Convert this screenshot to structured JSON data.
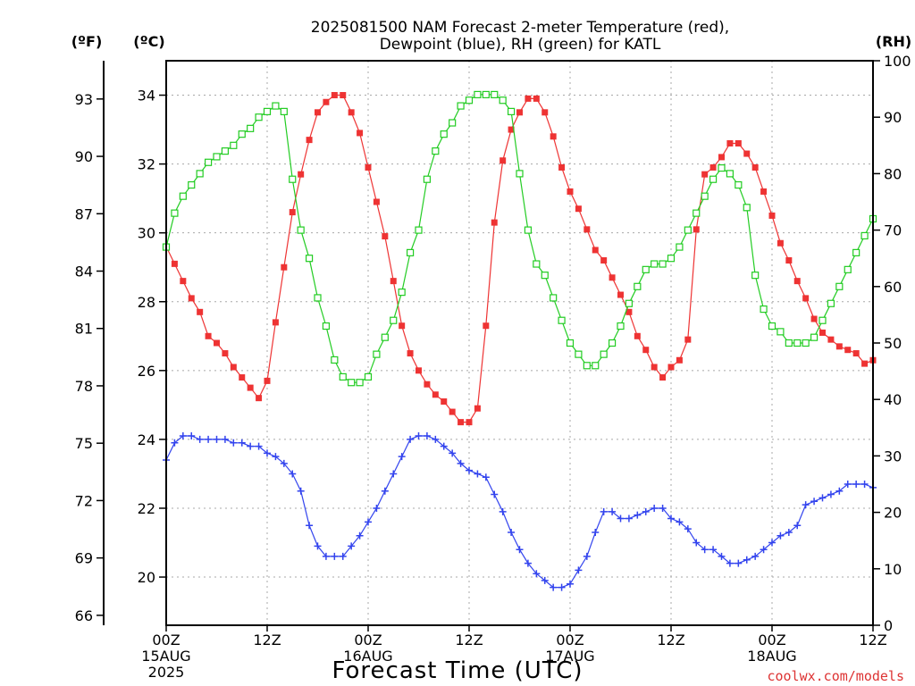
{
  "chart_data": {
    "type": "line",
    "title_line1": "2025081500 NAM Forecast 2-meter Temperature (red),",
    "title_line2": "Dewpoint (blue), RH (green) for KATL",
    "xlabel": "Forecast Time (UTC)",
    "credit": "coolwx.com/models",
    "units": {
      "fahrenheit": "(ºF)",
      "celsius": "(ºC)",
      "rh": "(RH)"
    },
    "x_range_hours": [
      0,
      84
    ],
    "x_ticks": [
      {
        "hour": 0,
        "lines": [
          "00Z",
          "15AUG",
          "2025"
        ]
      },
      {
        "hour": 12,
        "lines": [
          "12Z"
        ]
      },
      {
        "hour": 24,
        "lines": [
          "00Z",
          "16AUG"
        ]
      },
      {
        "hour": 36,
        "lines": [
          "12Z"
        ]
      },
      {
        "hour": 48,
        "lines": [
          "00Z",
          "17AUG"
        ]
      },
      {
        "hour": 60,
        "lines": [
          "12Z"
        ]
      },
      {
        "hour": 72,
        "lines": [
          "00Z",
          "18AUG"
        ]
      },
      {
        "hour": 84,
        "lines": [
          "12Z"
        ]
      }
    ],
    "celsius_axis": {
      "range": [
        18.6,
        35.0
      ],
      "ticks": [
        20,
        22,
        24,
        26,
        28,
        30,
        32,
        34
      ]
    },
    "fahrenheit_ticks": [
      66,
      69,
      72,
      75,
      78,
      81,
      84,
      87,
      90,
      93
    ],
    "rh_axis": {
      "range": [
        0,
        100
      ],
      "ticks": [
        0,
        10,
        20,
        30,
        40,
        50,
        60,
        70,
        80,
        90,
        100
      ]
    },
    "grid": "dotted",
    "series": [
      {
        "name": "Temperature",
        "color": "#ee3333",
        "marker": "filled-square",
        "axis": "celsius",
        "values": [
          29.6,
          29.1,
          28.6,
          28.1,
          27.7,
          27.0,
          26.8,
          26.5,
          26.1,
          25.8,
          25.5,
          25.2,
          25.7,
          27.4,
          29.0,
          30.6,
          31.7,
          32.7,
          33.5,
          33.8,
          34.0,
          34.0,
          33.5,
          32.9,
          31.9,
          30.9,
          29.9,
          28.6,
          27.3,
          26.5,
          26.0,
          25.6,
          25.3,
          25.1,
          24.8,
          24.5,
          24.5,
          24.9,
          27.3,
          30.3,
          32.1,
          33.0,
          33.5,
          33.9,
          33.9,
          33.5,
          32.8,
          31.9,
          31.2,
          30.7,
          30.1,
          29.5,
          29.2,
          28.7,
          28.2,
          27.7,
          27.0,
          26.6,
          26.1,
          25.8,
          26.1,
          26.3,
          26.9,
          30.1,
          31.7,
          31.9,
          32.2,
          32.6,
          32.6,
          32.3,
          31.9,
          31.2,
          30.5,
          29.7,
          29.2,
          28.6,
          28.1,
          27.5,
          27.1,
          26.9,
          26.7,
          26.6,
          26.5,
          26.2,
          26.3
        ]
      },
      {
        "name": "Dewpoint",
        "color": "#3344ee",
        "marker": "plus",
        "axis": "celsius",
        "values": [
          23.4,
          23.9,
          24.1,
          24.1,
          24.0,
          24.0,
          24.0,
          24.0,
          23.9,
          23.9,
          23.8,
          23.8,
          23.6,
          23.5,
          23.3,
          23.0,
          22.5,
          21.5,
          20.9,
          20.6,
          20.6,
          20.6,
          20.9,
          21.2,
          21.6,
          22.0,
          22.5,
          23.0,
          23.5,
          24.0,
          24.1,
          24.1,
          24.0,
          23.8,
          23.6,
          23.3,
          23.1,
          23.0,
          22.9,
          22.4,
          21.9,
          21.3,
          20.8,
          20.4,
          20.1,
          19.9,
          19.7,
          19.7,
          19.8,
          20.2,
          20.6,
          21.3,
          21.9,
          21.9,
          21.7,
          21.7,
          21.8,
          21.9,
          22.0,
          22.0,
          21.7,
          21.6,
          21.4,
          21.0,
          20.8,
          20.8,
          20.6,
          20.4,
          20.4,
          20.5,
          20.6,
          20.8,
          21.0,
          21.2,
          21.3,
          21.5,
          22.1,
          22.2,
          22.3,
          22.4,
          22.5,
          22.7,
          22.7,
          22.7,
          22.6
        ]
      },
      {
        "name": "RH",
        "color": "#22cc22",
        "marker": "open-square",
        "axis": "rh",
        "values": [
          67,
          73,
          76,
          78,
          80,
          82,
          83,
          84,
          85,
          87,
          88,
          90,
          91,
          92,
          91,
          79,
          70,
          65,
          58,
          53,
          47,
          44,
          43,
          43,
          44,
          48,
          51,
          54,
          59,
          66,
          70,
          79,
          84,
          87,
          89,
          92,
          93,
          94,
          94,
          94,
          93,
          91,
          80,
          70,
          64,
          62,
          58,
          54,
          50,
          48,
          46,
          46,
          48,
          50,
          53,
          57,
          60,
          63,
          64,
          64,
          65,
          67,
          70,
          73,
          76,
          79,
          81,
          80,
          78,
          74,
          62,
          56,
          53,
          52,
          50,
          50,
          50,
          51,
          54,
          57,
          60,
          63,
          66,
          69,
          72
        ]
      }
    ]
  }
}
